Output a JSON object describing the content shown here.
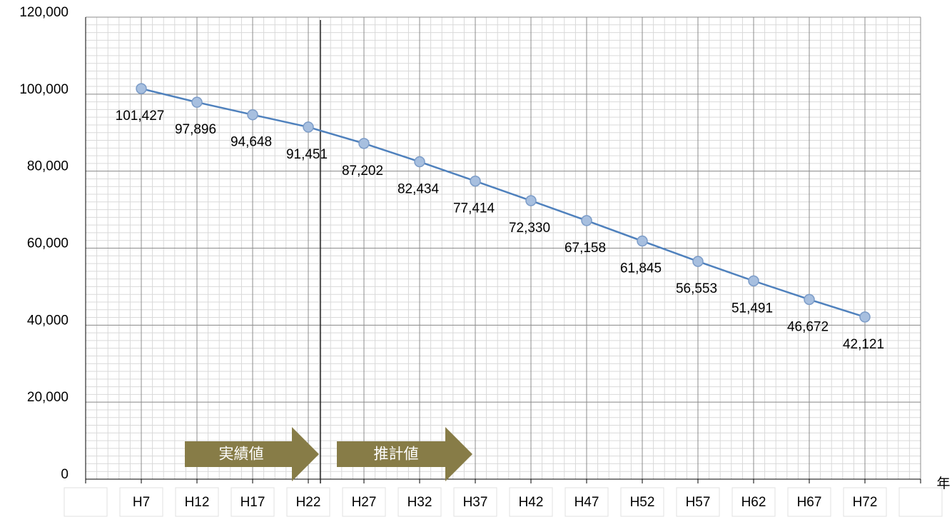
{
  "chart_data": {
    "type": "line",
    "categories": [
      null,
      "H7",
      "H12",
      "H17",
      "H22",
      "H27",
      "H32",
      "H37",
      "H42",
      "H47",
      "H52",
      "H57",
      "H62",
      "H67",
      "H72",
      null
    ],
    "series": [
      {
        "color": "#4f81bd",
        "values": [
          null,
          101427,
          97896,
          94648,
          91451,
          87202,
          82434,
          77414,
          72330,
          67158,
          61845,
          56553,
          51491,
          46672,
          42121,
          null
        ],
        "value_labels": [
          null,
          "101,427",
          "97,896",
          "94,648",
          "91,451",
          "87,202",
          "82,434",
          "77,414",
          "72,330",
          "67,158",
          "61,845",
          "56,553",
          "51,491",
          "46,672",
          "42,121",
          null
        ]
      }
    ],
    "ylim": [
      0,
      120000
    ],
    "yticks": [
      0,
      {
        "value": 20000,
        "label": "20,000"
      },
      {
        "value": 40000,
        "label": "40,000"
      },
      {
        "value": 60000,
        "label": "60,000"
      },
      {
        "value": 80000,
        "label": "80,000"
      },
      {
        "value": 100000,
        "label": "100,000"
      },
      {
        "value": 120000,
        "label": "120,000"
      }
    ],
    "x_label": "年",
    "annotations": [
      "実績値",
      "推計値"
    ],
    "grid": true
  }
}
